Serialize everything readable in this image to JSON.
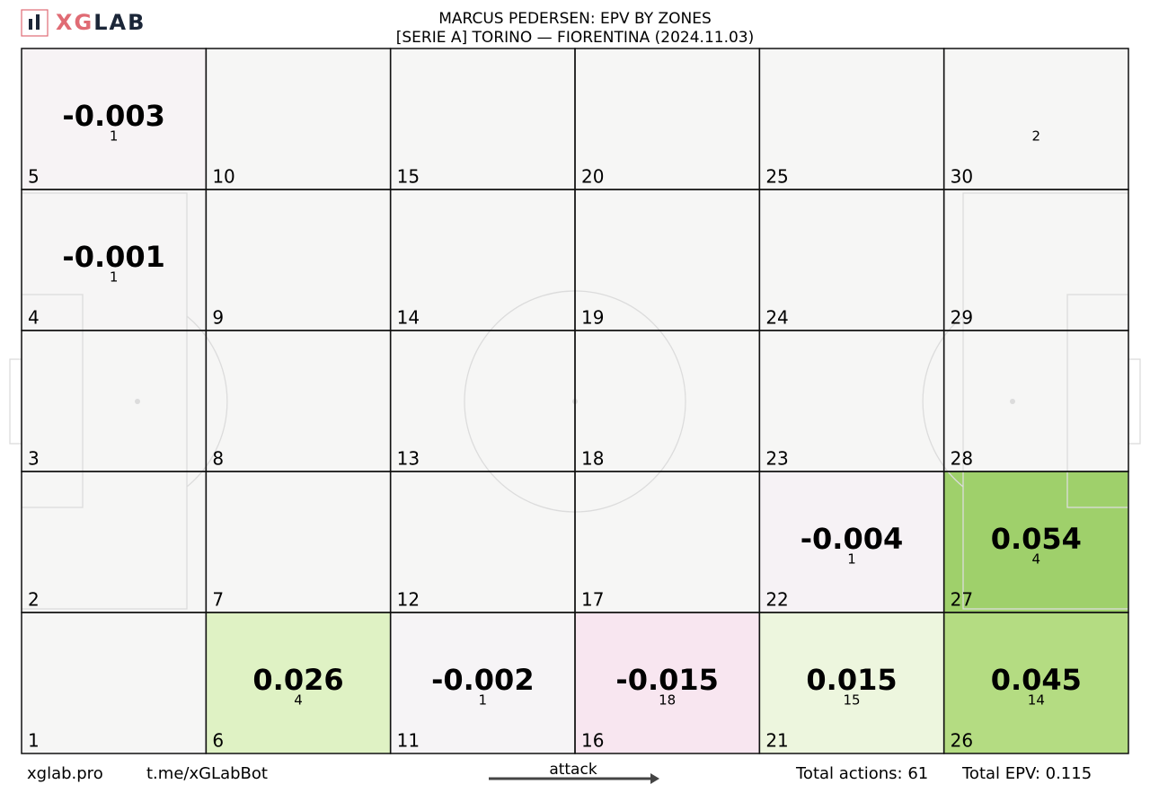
{
  "logo": {
    "accent": "XG",
    "rest": "LAB"
  },
  "chart_data": {
    "type": "zones",
    "title": "MARCUS PEDERSEN: EPV BY ZONES",
    "subtitle": "[SERIE A] TORINO —  FIORENTINA (2024.11.03)",
    "columns": 6,
    "rows": 5,
    "zones": [
      {
        "zone": 1,
        "epv": null,
        "actions": null,
        "color": "#f5f5f4"
      },
      {
        "zone": 2,
        "epv": null,
        "actions": null,
        "color": "#f5f5f4"
      },
      {
        "zone": 3,
        "epv": null,
        "actions": null,
        "color": "#f5f5f4"
      },
      {
        "zone": 4,
        "epv": -0.001,
        "actions": 1,
        "color": "#f5f4f4"
      },
      {
        "zone": 5,
        "epv": -0.003,
        "actions": 1,
        "color": "#f7f2f4"
      },
      {
        "zone": 6,
        "epv": 0.026,
        "actions": 4,
        "color": "#ddf1c1"
      },
      {
        "zone": 7,
        "epv": null,
        "actions": null,
        "color": "#f5f5f4"
      },
      {
        "zone": 8,
        "epv": null,
        "actions": null,
        "color": "#f5f5f4"
      },
      {
        "zone": 9,
        "epv": null,
        "actions": null,
        "color": "#f5f5f4"
      },
      {
        "zone": 10,
        "epv": null,
        "actions": null,
        "color": "#f5f5f4"
      },
      {
        "zone": 11,
        "epv": -0.002,
        "actions": 1,
        "color": "#f5f3f5"
      },
      {
        "zone": 12,
        "epv": null,
        "actions": null,
        "color": "#f5f5f4"
      },
      {
        "zone": 13,
        "epv": null,
        "actions": null,
        "color": "#f5f5f4"
      },
      {
        "zone": 14,
        "epv": null,
        "actions": null,
        "color": "#f5f5f4"
      },
      {
        "zone": 15,
        "epv": null,
        "actions": null,
        "color": "#f5f5f4"
      },
      {
        "zone": 16,
        "epv": -0.015,
        "actions": 18,
        "color": "#f8e5ef"
      },
      {
        "zone": 17,
        "epv": null,
        "actions": null,
        "color": "#f5f5f4"
      },
      {
        "zone": 18,
        "epv": null,
        "actions": null,
        "color": "#f5f5f4"
      },
      {
        "zone": 19,
        "epv": null,
        "actions": null,
        "color": "#f5f5f4"
      },
      {
        "zone": 20,
        "epv": null,
        "actions": null,
        "color": "#f5f5f4"
      },
      {
        "zone": 21,
        "epv": 0.015,
        "actions": 15,
        "color": "#ecf5dc"
      },
      {
        "zone": 22,
        "epv": -0.004,
        "actions": 1,
        "color": "#f6f1f4"
      },
      {
        "zone": 23,
        "epv": null,
        "actions": null,
        "color": "#f5f5f4"
      },
      {
        "zone": 24,
        "epv": null,
        "actions": null,
        "color": "#f5f5f4"
      },
      {
        "zone": 25,
        "epv": null,
        "actions": null,
        "color": "#f5f5f4"
      },
      {
        "zone": 26,
        "epv": 0.045,
        "actions": 14,
        "color": "#b0da7b"
      },
      {
        "zone": 27,
        "epv": 0.054,
        "actions": 4,
        "color": "#9ace63"
      },
      {
        "zone": 28,
        "epv": null,
        "actions": null,
        "color": "#f5f5f4"
      },
      {
        "zone": 29,
        "epv": null,
        "actions": null,
        "color": "#f5f5f4"
      },
      {
        "zone": 30,
        "epv": null,
        "actions": 2,
        "color": "#f5f5f4"
      }
    ]
  },
  "footer": {
    "site": "xglab.pro",
    "bot": "t.me/xGLabBot",
    "direction": "attack",
    "total_actions": "Total actions: 61",
    "total_epv": "Total EPV: 0.115"
  }
}
